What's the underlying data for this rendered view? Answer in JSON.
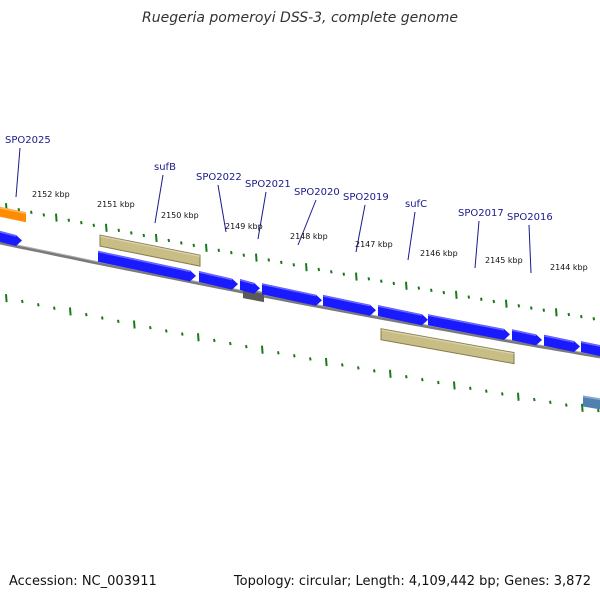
{
  "title": "Ruegeria pomeroyi DSS-3, complete genome",
  "accession": "Accession: NC_003911",
  "topology": "Topology: circular; Length: 4,109,442 bp; Genes: 3,872",
  "colors": {
    "cds_blue": "#1a1aff",
    "rrna_khaki": "#c8bd84",
    "khaki_edge": "#847b4a",
    "orange": "#ff8c00",
    "gray_gene": "#5a5a5a",
    "steel": "#5080b0",
    "tick_green": "#1a7a1a",
    "backbone": "#7a7a7a",
    "label": "#1a1a8c"
  },
  "genes": [
    {
      "name": "SPO2025"
    },
    {
      "name": "sufB"
    },
    {
      "name": "SPO2022"
    },
    {
      "name": "SPO2021"
    },
    {
      "name": "SPO2020"
    },
    {
      "name": "SPO2019"
    },
    {
      "name": "sufC"
    },
    {
      "name": "SPO2017"
    },
    {
      "name": "SPO2016"
    }
  ],
  "ticks": [
    {
      "label": "2152 kbp"
    },
    {
      "label": "2151 kbp"
    },
    {
      "label": "2150 kbp"
    },
    {
      "label": "2149 kbp"
    },
    {
      "label": "2148 kbp"
    },
    {
      "label": "2147 kbp"
    },
    {
      "label": "2146 kbp"
    },
    {
      "label": "2145 kbp"
    },
    {
      "label": "2144 kbp"
    }
  ]
}
